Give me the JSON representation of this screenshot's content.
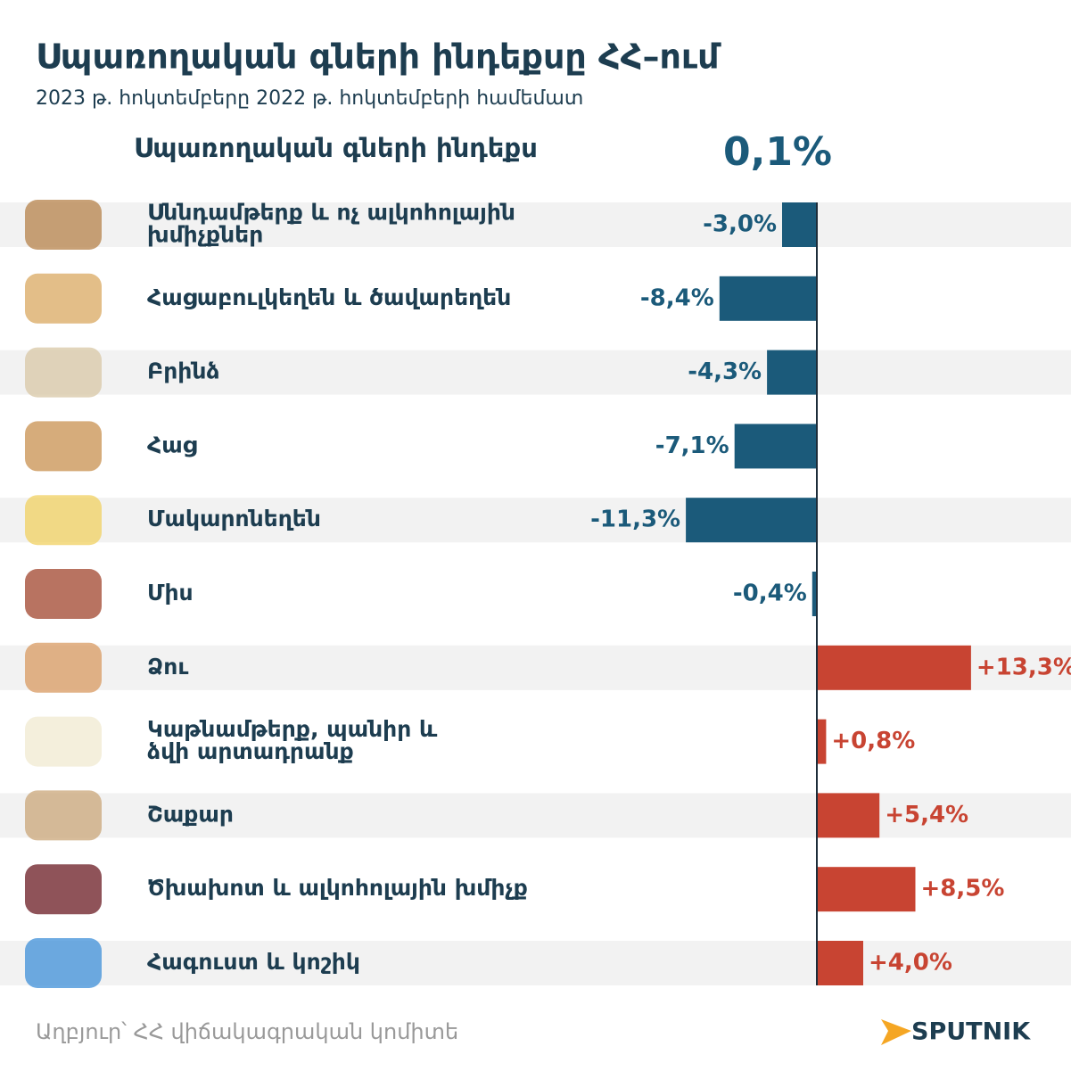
{
  "chart_data": {
    "type": "bar",
    "orientation": "horizontal",
    "title": "Սպառողական գների ինդեքսը ՀՀ–ում",
    "subtitle": "2023 թ. հոկտեմբերը 2022 թ. հոկտեմբերի համեմատ",
    "index_label": "Սպառողական գների ինդեքս",
    "index_value": 0.1,
    "index_value_label": "0,1%",
    "categories": [
      "Սննդամթերք և ոչ ալկոհոլային\nխմիչքներ",
      "Հացաբուլկեղեն և ծավարեղեն",
      "Բրինձ",
      "Հաց",
      "Մակարոնեղեն",
      "Միս",
      "Ձու",
      "Կաթնամթերք, պանիր և\nձվի արտադրանք",
      "Շաքար",
      "Ծխախոտ և ալկոհոլային խմիչք",
      "Հագուստ և կոշիկ"
    ],
    "values": [
      -3.0,
      -8.4,
      -4.3,
      -7.1,
      -11.3,
      -0.4,
      13.3,
      0.8,
      5.4,
      8.5,
      4.0
    ],
    "value_labels": [
      "-3,0%",
      "-8,4%",
      "-4,3%",
      "-7,1%",
      "-11,3%",
      "-0,4%",
      "+13,3%",
      "+0,8%",
      "+5,4%",
      "+8,5%",
      "+4,0%"
    ],
    "negative_color": "#1b5a7a",
    "positive_color": "#c84432",
    "source": "Աղբյուր՝ ՀՀ վիճակագրական կոմիտե",
    "logo": "SPUTNIK"
  }
}
